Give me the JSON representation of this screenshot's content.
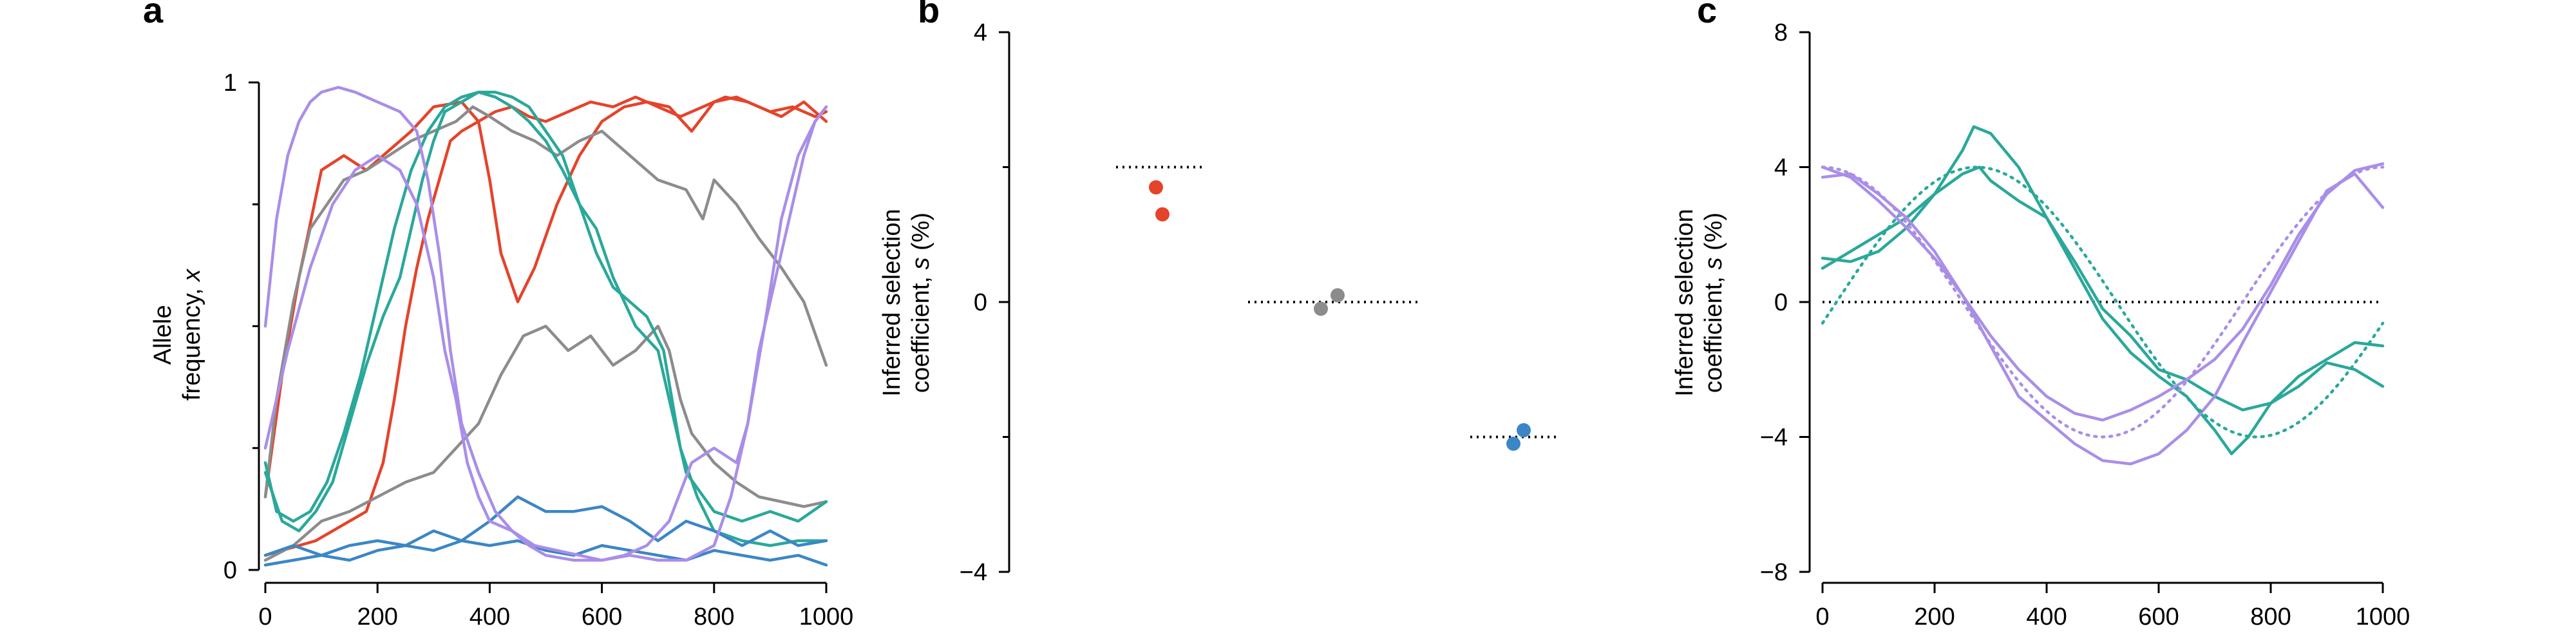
{
  "figure": {
    "panel_a_letter": "a",
    "panel_b_letter": "b",
    "panel_c_letter": "c"
  },
  "colors": {
    "red": "#e5432a",
    "gray": "#8c8c8c",
    "teal": "#2aa89a",
    "blue": "#3b86c6",
    "purple": "#a98ee8",
    "black": "#000000"
  },
  "chart_data": [
    {
      "type": "line",
      "panel": "a",
      "title": "",
      "ylabel_line1": "Allele",
      "ylabel_line2": "frequency, ",
      "ylabel_var": "x",
      "xlabel": "",
      "xlim": [
        0,
        1000
      ],
      "ylim": [
        0,
        1
      ],
      "xticks": [
        "0",
        "200",
        "400",
        "600",
        "800",
        "1000"
      ],
      "yticks": [
        "0",
        "1"
      ],
      "yticks_minor": [
        0.25,
        0.5,
        0.75
      ],
      "grid": false,
      "series": [
        {
          "color": "red",
          "x": [
            0,
            30,
            60,
            100,
            140,
            180,
            220,
            260,
            300,
            350,
            380,
            400,
            420,
            450,
            480,
            520,
            560,
            600,
            640,
            680,
            720,
            760,
            800,
            840,
            880,
            920,
            960,
            1000
          ],
          "y": [
            0.15,
            0.4,
            0.6,
            0.82,
            0.85,
            0.82,
            0.86,
            0.9,
            0.95,
            0.96,
            0.92,
            0.8,
            0.65,
            0.55,
            0.62,
            0.75,
            0.85,
            0.92,
            0.95,
            0.96,
            0.95,
            0.9,
            0.96,
            0.97,
            0.95,
            0.93,
            0.96,
            0.92
          ]
        },
        {
          "color": "red",
          "x": [
            0,
            30,
            60,
            90,
            120,
            150,
            180,
            210,
            230,
            250,
            270,
            290,
            310,
            330,
            350,
            380,
            410,
            440,
            470,
            500,
            540,
            580,
            620,
            660,
            700,
            740,
            780,
            820,
            860,
            900,
            940,
            980,
            1000
          ],
          "y": [
            0.03,
            0.04,
            0.05,
            0.06,
            0.08,
            0.1,
            0.12,
            0.22,
            0.35,
            0.5,
            0.62,
            0.72,
            0.8,
            0.88,
            0.9,
            0.92,
            0.94,
            0.95,
            0.93,
            0.92,
            0.94,
            0.96,
            0.95,
            0.97,
            0.95,
            0.93,
            0.95,
            0.97,
            0.96,
            0.94,
            0.95,
            0.93,
            0.94
          ]
        },
        {
          "color": "gray",
          "x": [
            0,
            20,
            50,
            80,
            110,
            140,
            180,
            220,
            260,
            300,
            340,
            370,
            400,
            440,
            480,
            520,
            560,
            600,
            650,
            700,
            750,
            780,
            800,
            840,
            880,
            920,
            960,
            1000
          ],
          "y": [
            0.15,
            0.35,
            0.55,
            0.7,
            0.75,
            0.8,
            0.82,
            0.85,
            0.88,
            0.9,
            0.92,
            0.95,
            0.93,
            0.9,
            0.88,
            0.85,
            0.88,
            0.9,
            0.85,
            0.8,
            0.78,
            0.72,
            0.8,
            0.75,
            0.68,
            0.62,
            0.55,
            0.42
          ]
        },
        {
          "color": "gray",
          "x": [
            0,
            50,
            100,
            150,
            200,
            250,
            300,
            340,
            380,
            420,
            460,
            500,
            540,
            580,
            620,
            660,
            700,
            720,
            740,
            760,
            800,
            840,
            880,
            920,
            960,
            1000
          ],
          "y": [
            0.02,
            0.05,
            0.1,
            0.12,
            0.15,
            0.18,
            0.2,
            0.25,
            0.3,
            0.4,
            0.48,
            0.5,
            0.45,
            0.48,
            0.42,
            0.45,
            0.5,
            0.45,
            0.35,
            0.28,
            0.22,
            0.18,
            0.15,
            0.14,
            0.13,
            0.14
          ]
        },
        {
          "color": "teal",
          "x": [
            0,
            20,
            50,
            80,
            110,
            140,
            170,
            200,
            230,
            260,
            290,
            320,
            350,
            380,
            410,
            440,
            470,
            500,
            530,
            560,
            590,
            620,
            660,
            700,
            720,
            750,
            800,
            850,
            900,
            950,
            1000
          ],
          "y": [
            0.22,
            0.12,
            0.1,
            0.12,
            0.18,
            0.28,
            0.4,
            0.55,
            0.7,
            0.82,
            0.9,
            0.95,
            0.97,
            0.98,
            0.97,
            0.95,
            0.92,
            0.88,
            0.82,
            0.75,
            0.7,
            0.6,
            0.5,
            0.45,
            0.35,
            0.2,
            0.12,
            0.1,
            0.12,
            0.1,
            0.14
          ]
        },
        {
          "color": "teal",
          "x": [
            0,
            30,
            60,
            90,
            120,
            150,
            180,
            210,
            240,
            260,
            280,
            300,
            320,
            350,
            380,
            410,
            440,
            470,
            500,
            530,
            560,
            590,
            620,
            650,
            680,
            710,
            740,
            770,
            800,
            850,
            900,
            950,
            1000
          ],
          "y": [
            0.2,
            0.1,
            0.08,
            0.12,
            0.18,
            0.3,
            0.42,
            0.52,
            0.6,
            0.7,
            0.8,
            0.88,
            0.94,
            0.96,
            0.98,
            0.98,
            0.97,
            0.95,
            0.9,
            0.85,
            0.75,
            0.65,
            0.58,
            0.55,
            0.52,
            0.45,
            0.25,
            0.15,
            0.08,
            0.06,
            0.05,
            0.06,
            0.06
          ]
        },
        {
          "color": "blue",
          "x": [
            0,
            50,
            100,
            150,
            200,
            250,
            300,
            350,
            400,
            450,
            500,
            550,
            600,
            650,
            700,
            750,
            800,
            850,
            900,
            950,
            1000
          ],
          "y": [
            0.03,
            0.05,
            0.03,
            0.05,
            0.06,
            0.05,
            0.08,
            0.06,
            0.1,
            0.15,
            0.12,
            0.12,
            0.13,
            0.1,
            0.06,
            0.1,
            0.08,
            0.05,
            0.08,
            0.05,
            0.06
          ]
        },
        {
          "color": "blue",
          "x": [
            0,
            50,
            100,
            150,
            200,
            250,
            300,
            350,
            400,
            450,
            500,
            550,
            600,
            650,
            700,
            750,
            800,
            850,
            900,
            950,
            1000
          ],
          "y": [
            0.01,
            0.02,
            0.03,
            0.02,
            0.04,
            0.05,
            0.04,
            0.06,
            0.05,
            0.06,
            0.04,
            0.03,
            0.05,
            0.04,
            0.03,
            0.02,
            0.04,
            0.03,
            0.02,
            0.03,
            0.01
          ]
        },
        {
          "color": "purple",
          "x": [
            0,
            20,
            40,
            60,
            80,
            100,
            130,
            160,
            200,
            240,
            270,
            290,
            310,
            330,
            350,
            380,
            410,
            440,
            470,
            500,
            550,
            600,
            650,
            700,
            750,
            800,
            830,
            860,
            890,
            920,
            950,
            980,
            1000
          ],
          "y": [
            0.5,
            0.72,
            0.85,
            0.92,
            0.96,
            0.98,
            0.99,
            0.98,
            0.96,
            0.94,
            0.9,
            0.8,
            0.65,
            0.45,
            0.3,
            0.2,
            0.12,
            0.08,
            0.05,
            0.03,
            0.02,
            0.02,
            0.03,
            0.02,
            0.02,
            0.05,
            0.15,
            0.3,
            0.5,
            0.72,
            0.85,
            0.92,
            0.95
          ]
        },
        {
          "color": "purple",
          "x": [
            0,
            40,
            80,
            120,
            160,
            200,
            240,
            270,
            300,
            320,
            340,
            360,
            380,
            400,
            440,
            480,
            520,
            560,
            600,
            640,
            680,
            720,
            760,
            800,
            840,
            860,
            880,
            900,
            920,
            940,
            960,
            980,
            1000
          ],
          "y": [
            0.25,
            0.45,
            0.62,
            0.75,
            0.82,
            0.85,
            0.82,
            0.75,
            0.6,
            0.45,
            0.35,
            0.22,
            0.15,
            0.1,
            0.08,
            0.05,
            0.04,
            0.03,
            0.02,
            0.03,
            0.05,
            0.1,
            0.22,
            0.25,
            0.22,
            0.3,
            0.45,
            0.55,
            0.65,
            0.75,
            0.85,
            0.92,
            0.95
          ]
        }
      ]
    },
    {
      "type": "scatter",
      "panel": "b",
      "title": "",
      "ylabel_line1": "Inferred selection",
      "ylabel_line2": "coefficient, ",
      "ylabel_hat": "s",
      "ylabel_unit": " (%)",
      "ylim": [
        -4,
        4
      ],
      "yticks": [
        "4",
        "0",
        "−4"
      ],
      "yticks_minor": [
        2,
        -2
      ],
      "grid": false,
      "groups": [
        {
          "color": "red",
          "true_value": 2.0,
          "points": [
            1.7,
            1.3
          ]
        },
        {
          "color": "gray",
          "true_value": 0.0,
          "points": [
            -0.1,
            0.1
          ]
        },
        {
          "color": "blue",
          "true_value": -2.0,
          "points": [
            -2.1,
            -1.9
          ]
        }
      ]
    },
    {
      "type": "line",
      "panel": "c",
      "title": "",
      "ylabel_line1": "Inferred selection",
      "ylabel_line2": "coefficient, ",
      "ylabel_hat": "s",
      "ylabel_unit": " (%)",
      "xlim": [
        0,
        1000
      ],
      "ylim": [
        -8,
        8
      ],
      "xticks": [
        "0",
        "200",
        "400",
        "600",
        "800",
        "1000"
      ],
      "yticks": [
        "8",
        "4",
        "0",
        "−4",
        "−8"
      ],
      "grid": false,
      "series": [
        {
          "color": "teal",
          "style": "solid",
          "x": [
            0,
            50,
            100,
            150,
            200,
            250,
            270,
            300,
            350,
            400,
            450,
            500,
            550,
            600,
            650,
            700,
            730,
            760,
            800,
            850,
            900,
            950,
            1000
          ],
          "y": [
            1.0,
            1.5,
            2.0,
            2.5,
            3.2,
            4.5,
            5.2,
            5.0,
            4.0,
            2.5,
            1.0,
            -0.5,
            -1.5,
            -2.2,
            -2.8,
            -3.8,
            -4.5,
            -4.0,
            -3.0,
            -2.2,
            -1.7,
            -1.2,
            -1.3
          ]
        },
        {
          "color": "teal",
          "style": "solid",
          "x": [
            0,
            50,
            100,
            150,
            200,
            250,
            280,
            300,
            350,
            400,
            450,
            500,
            550,
            600,
            650,
            700,
            750,
            800,
            850,
            900,
            950,
            1000
          ],
          "y": [
            1.3,
            1.2,
            1.5,
            2.2,
            3.2,
            3.8,
            4.0,
            3.6,
            3.0,
            2.5,
            1.2,
            -0.2,
            -1.0,
            -2.0,
            -2.3,
            -2.8,
            -3.2,
            -3.0,
            -2.5,
            -1.8,
            -2.0,
            -2.5
          ]
        },
        {
          "color": "purple",
          "style": "solid",
          "x": [
            0,
            50,
            100,
            150,
            200,
            250,
            300,
            350,
            400,
            450,
            500,
            550,
            600,
            650,
            700,
            750,
            800,
            850,
            900,
            950,
            1000
          ],
          "y": [
            3.7,
            3.8,
            3.2,
            2.5,
            1.5,
            0.2,
            -1.3,
            -2.8,
            -3.5,
            -4.2,
            -4.7,
            -4.8,
            -4.5,
            -3.8,
            -2.8,
            -1.2,
            0.3,
            1.8,
            3.3,
            3.8,
            2.8
          ]
        },
        {
          "color": "purple",
          "style": "solid",
          "x": [
            0,
            50,
            100,
            150,
            200,
            250,
            300,
            350,
            400,
            450,
            500,
            550,
            600,
            650,
            700,
            750,
            800,
            850,
            900,
            950,
            1000
          ],
          "y": [
            4.0,
            3.7,
            3.0,
            2.2,
            1.3,
            0.2,
            -1.0,
            -2.0,
            -2.8,
            -3.3,
            -3.5,
            -3.2,
            -2.8,
            -2.3,
            -1.7,
            -0.8,
            0.5,
            2.0,
            3.2,
            3.9,
            4.1
          ]
        },
        {
          "color": "teal",
          "style": "dotted",
          "function": "4*sin(2*pi*(x-25)/1000)"
        },
        {
          "color": "purple",
          "style": "dotted",
          "function": "4*cos(2*pi*x/1000)"
        }
      ],
      "reference_line_y": 0
    }
  ]
}
